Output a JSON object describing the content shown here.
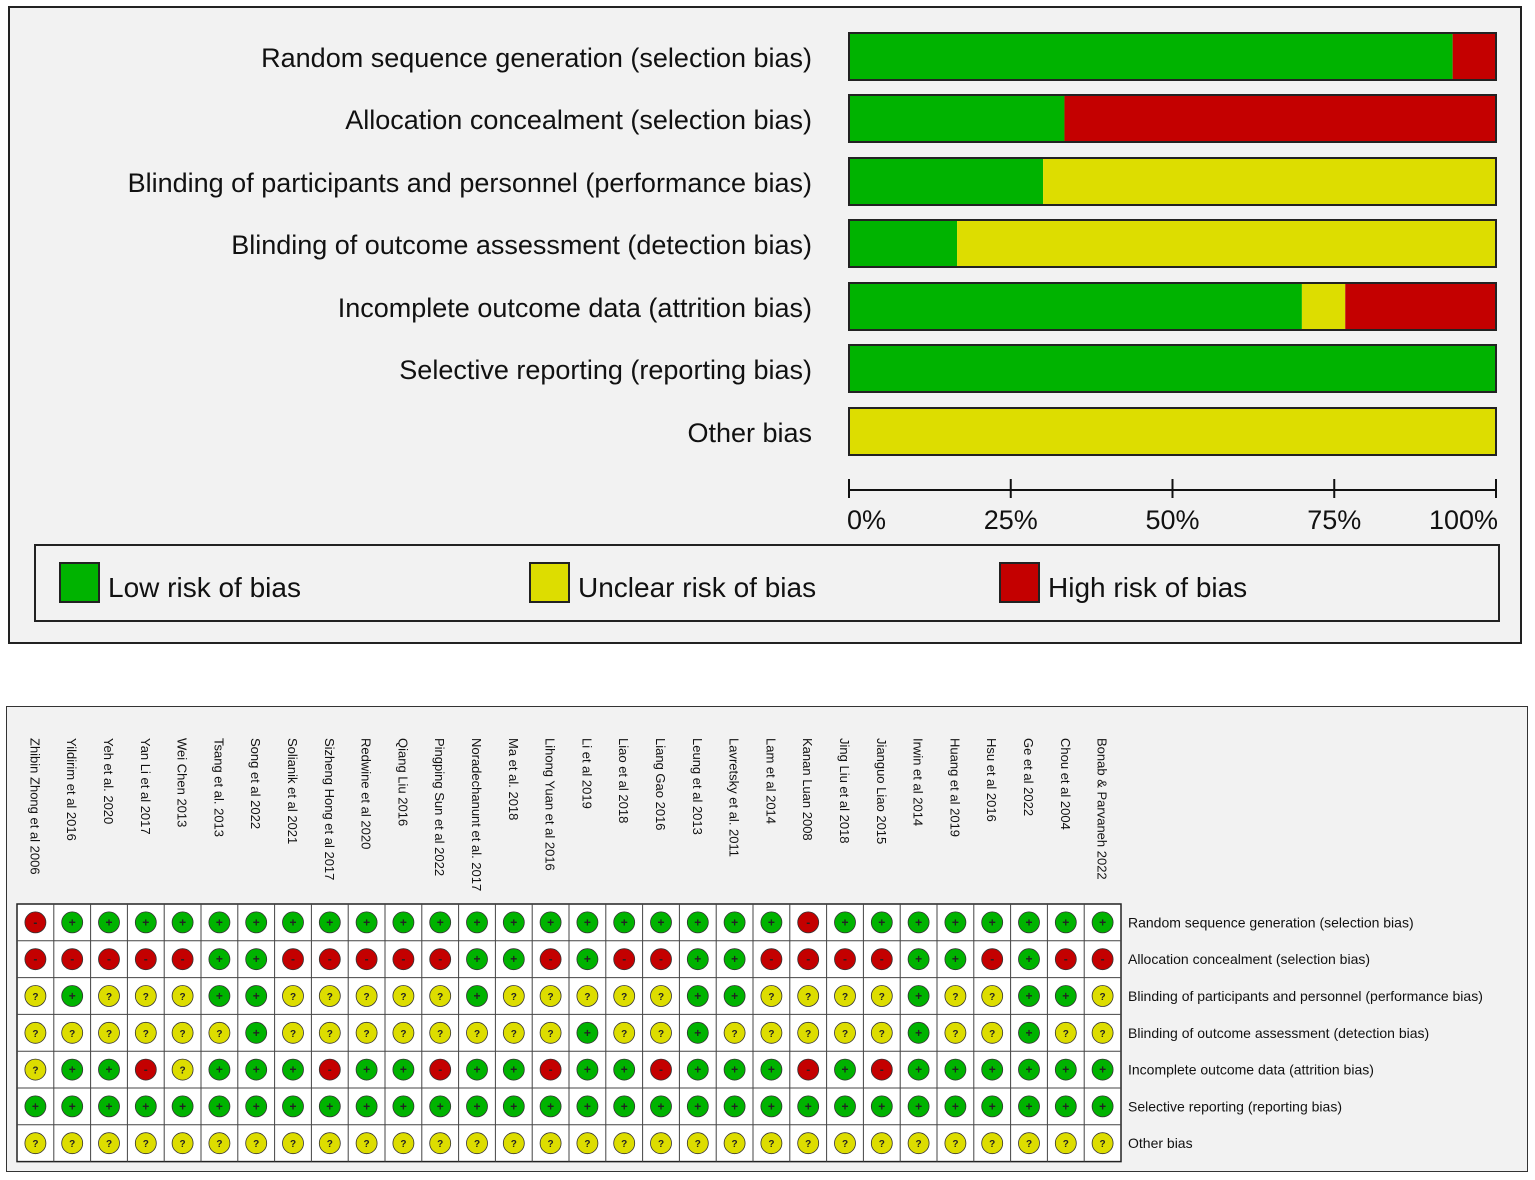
{
  "chart_data": [
    {
      "type": "bar",
      "orientation": "horizontal",
      "stacked": true,
      "categories": [
        "Random sequence generation (selection bias)",
        "Allocation concealment (selection bias)",
        "Blinding of participants and personnel (performance bias)",
        "Blinding of outcome assessment (detection bias)",
        "Incomplete outcome data (attrition bias)",
        "Selective reporting (reporting bias)",
        "Other bias"
      ],
      "series": [
        {
          "name": "Low risk of bias",
          "color": "#00b300",
          "values": [
            93.3,
            33.3,
            30.0,
            16.7,
            70.0,
            100,
            0
          ]
        },
        {
          "name": "Unclear risk of bias",
          "color": "#dddd00",
          "values": [
            0,
            0,
            70.0,
            83.3,
            6.7,
            0,
            100
          ]
        },
        {
          "name": "High risk of bias",
          "color": "#c40000",
          "values": [
            6.7,
            66.7,
            0,
            0,
            23.3,
            0,
            0
          ]
        }
      ],
      "xticks": [
        "0%",
        "25%",
        "50%",
        "75%",
        "100%"
      ],
      "xlim": [
        0,
        100
      ],
      "legend": [
        "Low risk of bias",
        "Unclear risk of bias",
        "High risk of bias"
      ]
    },
    {
      "type": "table",
      "studies": [
        "Zhibin Zhong  et al 2006",
        "Yildirim et al 2016",
        "Yeh et al. 2020",
        "Yan Li et al 2017",
        "Wei Chen 2013",
        "Tsang et al.  2013",
        "Song et al 2022",
        "Solianik et al 2021",
        "Sizheng Hong et al 2017",
        "Redwine et al 2020",
        "Qiang Liu 2016",
        "Pingping Sun et al 2022",
        "Noradechanunt et al. 2017",
        "Ma et al.  2018",
        "Lihong Yuan et al 2016",
        "Li et al 2019",
        "Liao et al 2018",
        "Liang Gao 2016",
        "Leung et al 2013",
        "Lavretsky et al.  2011",
        "Lam  et al 2014",
        "Kanan Luan 2008",
        "Jing Liu et al 2018",
        "Jianguo Liao  2015",
        "Irwin et al 2014",
        "Huang et al  2019",
        "Hsu et al 2016",
        "Ge et al 2022",
        "Chou et al  2004",
        "Bonab & Parvaneh 2022"
      ],
      "domains": [
        "Random sequence generation (selection bias)",
        "Allocation concealment (selection bias)",
        "Blinding of participants and personnel (performance bias)",
        "Blinding of outcome assessment (detection bias)",
        "Incomplete outcome data (attrition bias)",
        "Selective reporting (reporting bias)",
        "Other bias"
      ],
      "symbols": {
        "low": "+",
        "unclear": "?",
        "high": "-"
      },
      "ratings": [
        [
          "H",
          "L",
          "L",
          "L",
          "L",
          "L",
          "L",
          "L",
          "L",
          "L",
          "L",
          "L",
          "L",
          "L",
          "L",
          "L",
          "L",
          "L",
          "L",
          "L",
          "L",
          "H",
          "L",
          "L",
          "L",
          "L",
          "L",
          "L",
          "L",
          "L"
        ],
        [
          "H",
          "H",
          "H",
          "H",
          "H",
          "L",
          "L",
          "H",
          "H",
          "H",
          "H",
          "H",
          "L",
          "L",
          "H",
          "L",
          "H",
          "H",
          "L",
          "L",
          "H",
          "H",
          "H",
          "H",
          "L",
          "L",
          "H",
          "L",
          "H",
          "H"
        ],
        [
          "U",
          "L",
          "U",
          "U",
          "U",
          "L",
          "L",
          "U",
          "U",
          "U",
          "U",
          "U",
          "L",
          "U",
          "U",
          "U",
          "U",
          "U",
          "L",
          "L",
          "U",
          "U",
          "U",
          "U",
          "L",
          "U",
          "U",
          "L",
          "L",
          "U"
        ],
        [
          "U",
          "U",
          "U",
          "U",
          "U",
          "U",
          "L",
          "U",
          "U",
          "U",
          "U",
          "U",
          "U",
          "U",
          "U",
          "L",
          "U",
          "U",
          "L",
          "U",
          "U",
          "U",
          "U",
          "U",
          "L",
          "U",
          "U",
          "L",
          "U",
          "U"
        ],
        [
          "U",
          "L",
          "L",
          "H",
          "U",
          "L",
          "L",
          "L",
          "H",
          "L",
          "L",
          "H",
          "L",
          "L",
          "H",
          "L",
          "L",
          "H",
          "L",
          "L",
          "L",
          "H",
          "L",
          "H",
          "L",
          "L",
          "L",
          "L",
          "L",
          "L"
        ],
        [
          "L",
          "L",
          "L",
          "L",
          "L",
          "L",
          "L",
          "L",
          "L",
          "L",
          "L",
          "L",
          "L",
          "L",
          "L",
          "L",
          "L",
          "L",
          "L",
          "L",
          "L",
          "L",
          "L",
          "L",
          "L",
          "L",
          "L",
          "L",
          "L",
          "L"
        ],
        [
          "U",
          "U",
          "U",
          "U",
          "U",
          "U",
          "U",
          "U",
          "U",
          "U",
          "U",
          "U",
          "U",
          "U",
          "U",
          "U",
          "U",
          "U",
          "U",
          "U",
          "U",
          "U",
          "U",
          "U",
          "U",
          "U",
          "U",
          "U",
          "U",
          "U"
        ]
      ]
    }
  ]
}
